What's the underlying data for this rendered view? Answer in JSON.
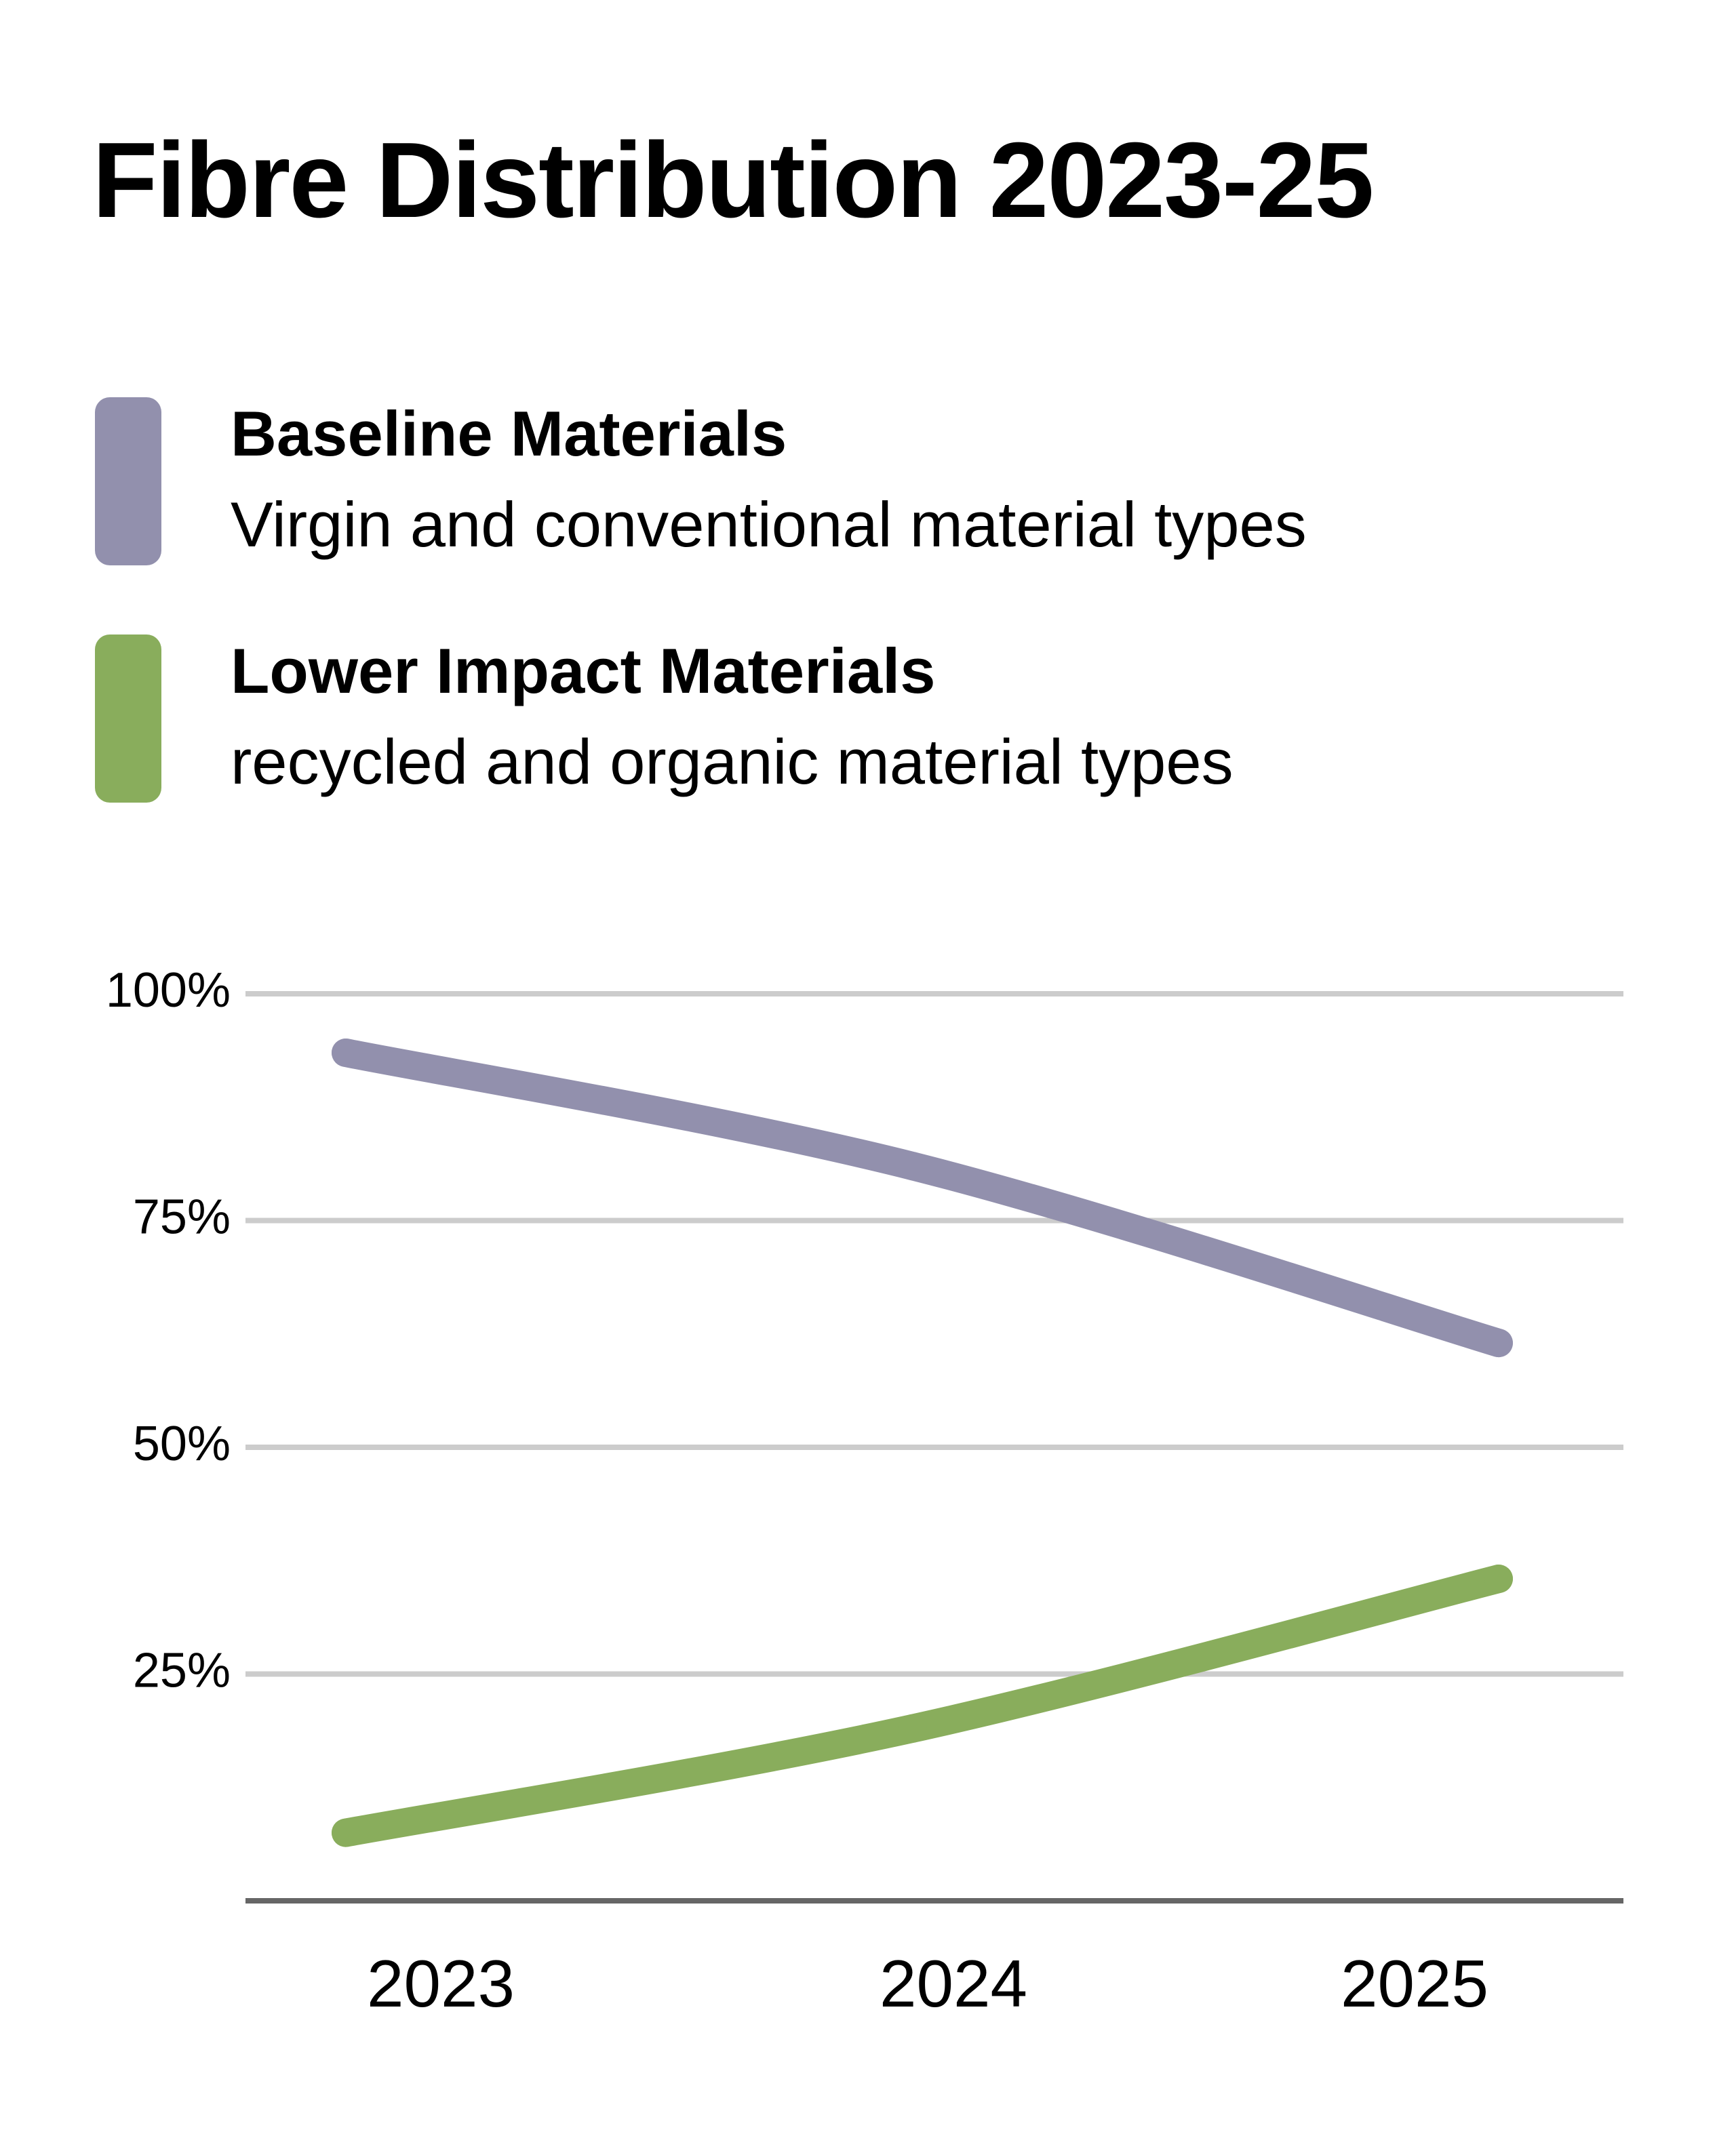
{
  "title": "Fibre Distribution 2023-25",
  "legend": [
    {
      "name": "Baseline Materials",
      "description": "Virgin and conventional material types",
      "color": "#9290ad"
    },
    {
      "name": "Lower Impact Materials",
      "description": "recycled and organic material types",
      "color": "#89ad5c"
    }
  ],
  "colors": {
    "gridline": "#cccccc",
    "baseline_axis": "#666666",
    "text": "#000000"
  },
  "chart_data": {
    "type": "line",
    "title": "Fibre Distribution 2023-25",
    "x": [
      "2023",
      "2024",
      "2025"
    ],
    "y_ticks": [
      "100%",
      "75%",
      "50%",
      "25%"
    ],
    "y_tick_values": [
      100,
      75,
      50,
      25
    ],
    "ylim": [
      0,
      100
    ],
    "grid": true,
    "legend_position": "top",
    "series": [
      {
        "name": "Baseline Materials",
        "color": "#9290ad",
        "values": [
          93.5,
          81,
          61.5
        ]
      },
      {
        "name": "Lower Impact Materials",
        "color": "#89ad5c",
        "values": [
          7.5,
          19,
          35.5
        ]
      }
    ]
  }
}
